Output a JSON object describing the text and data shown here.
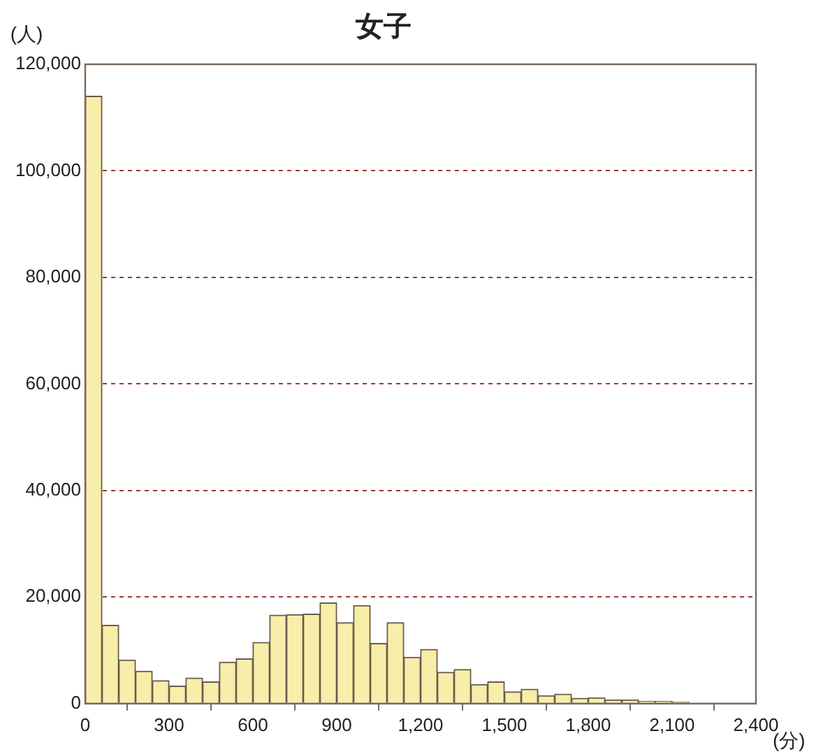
{
  "chart_data": {
    "type": "histogram",
    "title": "女子",
    "xlabel": "(分)",
    "ylabel": "(人)",
    "bins": [
      0,
      60,
      120,
      180,
      240,
      300,
      360,
      420,
      480,
      540,
      600,
      660,
      720,
      780,
      840,
      900,
      960,
      1020,
      1080,
      1140,
      1200,
      1260,
      1320,
      1380,
      1440,
      1500,
      1560,
      1620,
      1680,
      1740,
      1800,
      1860,
      1920,
      1980,
      2040,
      2100,
      2160,
      2220,
      2280,
      2340,
      2400
    ],
    "values": [
      114000,
      14700,
      8200,
      6100,
      4300,
      3300,
      4800,
      4100,
      7800,
      8400,
      11500,
      16600,
      16700,
      16800,
      18900,
      15200,
      18400,
      11300,
      15200,
      8700,
      10200,
      5900,
      6400,
      3600,
      4100,
      2200,
      2700,
      1500,
      1800,
      1000,
      1100,
      700,
      700,
      400,
      400,
      300,
      null,
      null,
      null,
      null
    ],
    "color": "#f7eeaa",
    "xlim": [
      0,
      2400
    ],
    "xticks": [
      0,
      300,
      600,
      900,
      {
        "value": 1200,
        "label": "1,200"
      },
      {
        "value": 1500,
        "label": "1,500"
      },
      {
        "value": 1800,
        "label": "1,800"
      },
      {
        "value": 2100,
        "label": "2,100"
      },
      {
        "value": 2400,
        "label": "2,400"
      }
    ],
    "ylim": [
      0,
      120000
    ],
    "yticks": [
      0,
      {
        "value": 20000,
        "label": "20,000"
      },
      {
        "value": 40000,
        "label": "40,000"
      },
      {
        "value": 60000,
        "label": "60,000"
      },
      {
        "value": 80000,
        "label": "80,000"
      },
      {
        "value": 100000,
        "label": "100,000"
      },
      {
        "value": 120000,
        "label": "120,000"
      }
    ],
    "grid": "y",
    "legend": false
  }
}
